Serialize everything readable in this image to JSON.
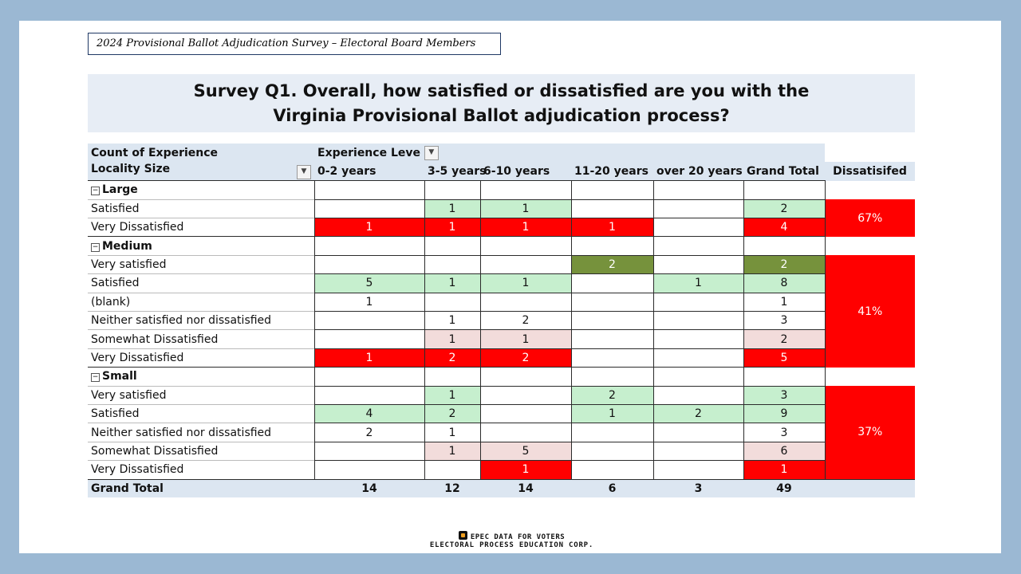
{
  "survey_label": "2024 Provisional Ballot Adjudication Survey – Electoral Board Members",
  "question": {
    "line1": "Survey Q1. Overall, how satisfied or dissatisfied are you with the",
    "line2": "Virginia Provisional Ballot adjudication process?"
  },
  "pivot": {
    "count_label": "Count of Experience",
    "experience_filter": "Experience Leve",
    "row_field": "Locality Size",
    "columns": [
      "0-2 years",
      "3-5 years",
      "6-10 years",
      "11-20 years",
      "over 20 years",
      "Grand Total",
      "Dissatisifed"
    ],
    "groups": [
      {
        "name": "Large",
        "dissatisfied": "67%",
        "rows": [
          {
            "label": "Satisfied",
            "values": [
              "",
              "1",
              "1",
              "",
              "",
              "2"
            ],
            "colors": [
              "",
              "g",
              "g",
              "",
              "",
              "g"
            ]
          },
          {
            "label": "Very Dissatisfied",
            "values": [
              "1",
              "1",
              "1",
              "1",
              "",
              "4"
            ],
            "colors": [
              "r",
              "r",
              "r",
              "r",
              "",
              "r"
            ]
          }
        ]
      },
      {
        "name": "Medium",
        "dissatisfied": "41%",
        "rows": [
          {
            "label": "Very satisfied",
            "values": [
              "",
              "",
              "",
              "2",
              "",
              "2"
            ],
            "colors": [
              "",
              "",
              "",
              "dg",
              "",
              "dg"
            ]
          },
          {
            "label": "Satisfied",
            "values": [
              "5",
              "1",
              "1",
              "",
              "1",
              "8"
            ],
            "colors": [
              "g",
              "g",
              "g",
              "",
              "g",
              "g"
            ]
          },
          {
            "label": "(blank)",
            "values": [
              "1",
              "",
              "",
              "",
              "",
              "1"
            ],
            "colors": [
              "",
              "",
              "",
              "",
              "",
              ""
            ]
          },
          {
            "label": "Neither satisfied nor dissatisfied",
            "values": [
              "",
              "1",
              "2",
              "",
              "",
              "3"
            ],
            "colors": [
              "",
              "",
              "",
              "",
              "",
              ""
            ]
          },
          {
            "label": "Somewhat Dissatisfied",
            "values": [
              "",
              "1",
              "1",
              "",
              "",
              "2"
            ],
            "colors": [
              "",
              "p",
              "p",
              "",
              "",
              "p"
            ]
          },
          {
            "label": "Very Dissatisfied",
            "values": [
              "1",
              "2",
              "2",
              "",
              "",
              "5"
            ],
            "colors": [
              "r",
              "r",
              "r",
              "",
              "",
              "r"
            ]
          }
        ]
      },
      {
        "name": "Small",
        "dissatisfied": "37%",
        "rows": [
          {
            "label": "Very satisfied",
            "values": [
              "",
              "1",
              "",
              "2",
              "",
              "3"
            ],
            "colors": [
              "",
              "g",
              "",
              "g",
              "",
              "g"
            ]
          },
          {
            "label": "Satisfied",
            "values": [
              "4",
              "2",
              "",
              "1",
              "2",
              "9"
            ],
            "colors": [
              "g",
              "g",
              "",
              "g",
              "g",
              "g"
            ]
          },
          {
            "label": "Neither satisfied nor dissatisfied",
            "values": [
              "2",
              "1",
              "",
              "",
              "",
              "3"
            ],
            "colors": [
              "",
              "",
              "",
              "",
              "",
              ""
            ]
          },
          {
            "label": "Somewhat Dissatisfied",
            "values": [
              "",
              "1",
              "5",
              "",
              "",
              "6"
            ],
            "colors": [
              "",
              "p",
              "p",
              "",
              "",
              "p"
            ]
          },
          {
            "label": "Very Dissatisfied",
            "values": [
              "",
              "",
              "1",
              "",
              "",
              "1"
            ],
            "colors": [
              "",
              "",
              "r",
              "",
              "",
              "r"
            ]
          }
        ]
      }
    ],
    "grand_total": {
      "label": "Grand Total",
      "values": [
        "14",
        "12",
        "14",
        "6",
        "3",
        "49"
      ]
    }
  },
  "footer": {
    "line1": "EPEC DATA FOR VOTERS",
    "line2": "ELECTORAL PROCESS EDUCATION CORP."
  },
  "colors": {
    "green": "#c6efce",
    "red": "#ff0000",
    "dark_green": "#76923c",
    "pink": "#f2dcdb",
    "header": "#dce6f1"
  }
}
